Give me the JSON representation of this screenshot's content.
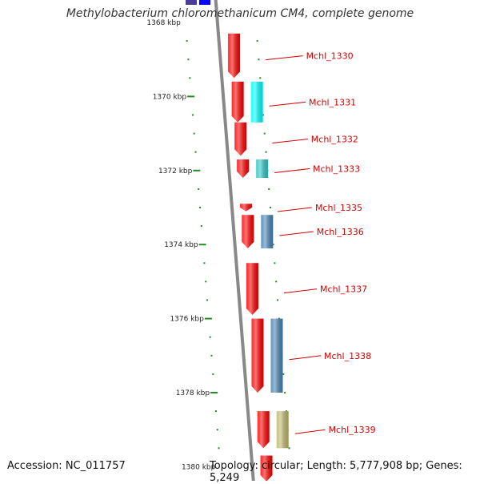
{
  "header": {
    "title": "Methylobacterium chloromethanicum CM4, complete genome"
  },
  "footer": {
    "accession": "Accession: NC_011757",
    "summary": "Topology: circular; Length: 5,777,908 bp; Genes: 5,249"
  },
  "colors": {
    "forward_gene": "#ff0000",
    "reverse_gene_cyan": "#00ffff",
    "reverse_gene_teal": "#2ec4c4",
    "reverse_gene_steel": "#4682b4",
    "reverse_gene_khaki": "#bdb76b",
    "backbone": "#888888",
    "ticks": "#228b22",
    "label_line": "#d40000"
  },
  "axis": {
    "unit": "kbp",
    "ticks": [
      {
        "kbp": 1368,
        "label": "1368 kbp"
      },
      {
        "kbp": 1370,
        "label": "1370 kbp"
      },
      {
        "kbp": 1372,
        "label": "1372 kbp"
      },
      {
        "kbp": 1374,
        "label": "1374 kbp"
      },
      {
        "kbp": 1376,
        "label": "1376 kbp"
      },
      {
        "kbp": 1378,
        "label": "1378 kbp"
      },
      {
        "kbp": 1380,
        "label": "1380 kbp"
      }
    ]
  },
  "genes": [
    {
      "id": "Mchl_1330",
      "strand": "+",
      "start_kbp": 1368.3,
      "end_kbp": 1369.5,
      "color": "#ff0000"
    },
    {
      "id": "Mchl_1331",
      "strand": "+",
      "start_kbp": 1369.6,
      "end_kbp": 1370.7,
      "color": "#ff0000"
    },
    {
      "id": "",
      "strand": "-",
      "start_kbp": 1369.6,
      "end_kbp": 1370.7,
      "color": "#00ffff"
    },
    {
      "id": "Mchl_1332",
      "strand": "+",
      "start_kbp": 1370.7,
      "end_kbp": 1371.6,
      "color": "#ff0000"
    },
    {
      "id": "Mchl_1333",
      "strand": "+",
      "start_kbp": 1371.7,
      "end_kbp": 1372.2,
      "color": "#ff0000"
    },
    {
      "id": "",
      "strand": "-",
      "start_kbp": 1371.7,
      "end_kbp": 1372.2,
      "color": "#2ec4c4"
    },
    {
      "id": "Mchl_1335",
      "strand": "+",
      "start_kbp": 1372.9,
      "end_kbp": 1373.1,
      "color": "#ff0000"
    },
    {
      "id": "Mchl_1336",
      "strand": "+",
      "start_kbp": 1373.2,
      "end_kbp": 1374.1,
      "color": "#ff0000"
    },
    {
      "id": "",
      "strand": "-",
      "start_kbp": 1373.2,
      "end_kbp": 1374.1,
      "color": "#4682b4"
    },
    {
      "id": "Mchl_1337",
      "strand": "+",
      "start_kbp": 1374.5,
      "end_kbp": 1375.9,
      "color": "#ff0000"
    },
    {
      "id": "Mchl_1338",
      "strand": "+",
      "start_kbp": 1376.0,
      "end_kbp": 1378.0,
      "color": "#ff0000"
    },
    {
      "id": "",
      "strand": "-",
      "start_kbp": 1376.0,
      "end_kbp": 1378.0,
      "color": "#4682b4"
    },
    {
      "id": "Mchl_1339",
      "strand": "+",
      "start_kbp": 1378.5,
      "end_kbp": 1379.5,
      "color": "#ff0000"
    },
    {
      "id": "",
      "strand": "-",
      "start_kbp": 1378.5,
      "end_kbp": 1379.5,
      "color": "#bdb76b"
    },
    {
      "id": "",
      "strand": "+",
      "start_kbp": 1379.7,
      "end_kbp": 1380.4,
      "color": "#ff0000"
    }
  ]
}
